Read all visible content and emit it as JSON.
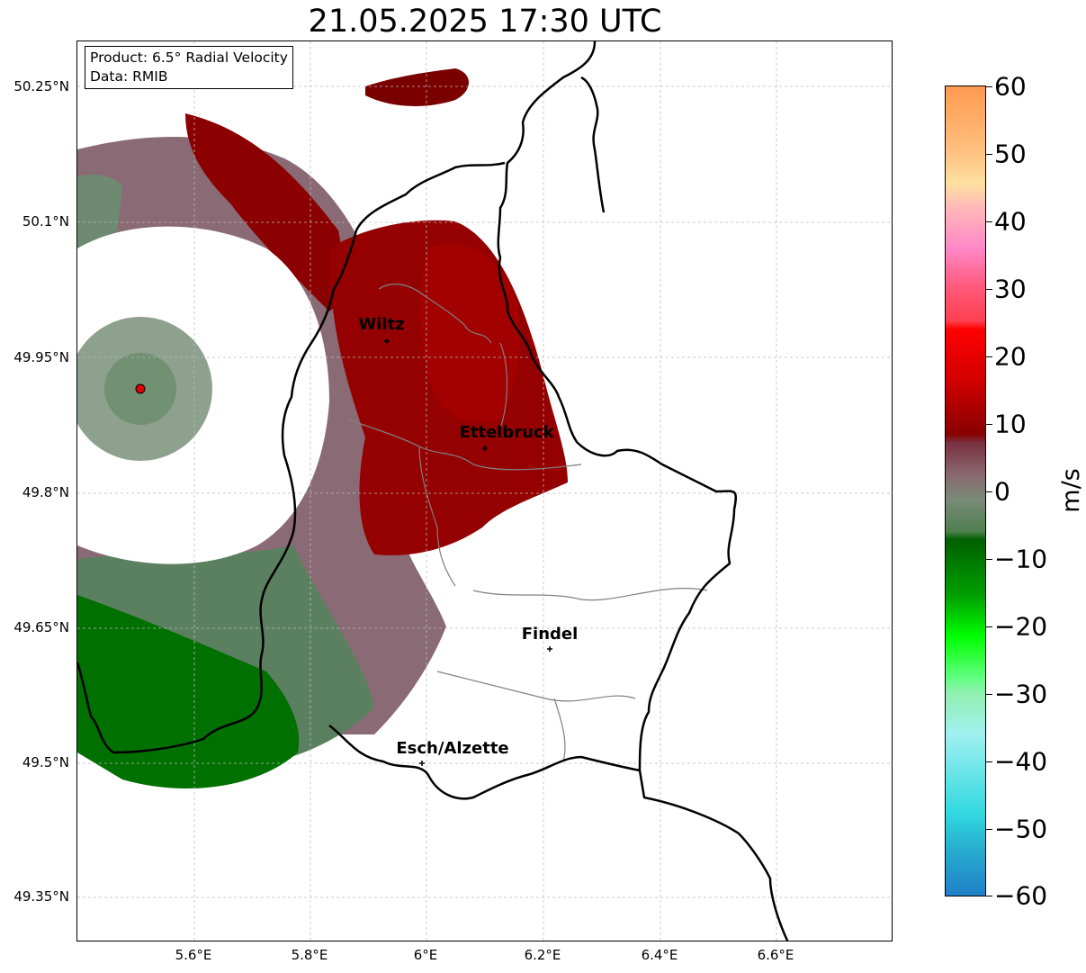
{
  "title": "21.05.2025 17:30 UTC",
  "info": {
    "product": "Product: 6.5° Radial Velocity",
    "source": "Data: RMIB"
  },
  "axes": {
    "lat_labels": [
      "50.25°N",
      "50.1°N",
      "49.95°N",
      "49.8°N",
      "49.65°N",
      "49.5°N",
      "49.35°N"
    ],
    "lon_labels": [
      "5.6°E",
      "5.8°E",
      "6°E",
      "6.2°E",
      "6.4°E",
      "6.6°E"
    ]
  },
  "cities": [
    {
      "name": "Wiltz",
      "lat": 49.966,
      "lon": 5.932
    },
    {
      "name": "Ettelbruck",
      "lat": 49.848,
      "lon": 6.098
    },
    {
      "name": "Findel",
      "lat": 49.627,
      "lon": 6.211
    },
    {
      "name": "Esch/Alzette",
      "lat": 49.496,
      "lon": 5.985
    }
  ],
  "colorbar": {
    "label": "m/s",
    "ticks": [
      "60",
      "50",
      "40",
      "30",
      "20",
      "10",
      "0",
      "−10",
      "−20",
      "−30",
      "−40",
      "−50",
      "−60"
    ],
    "min": -60,
    "max": 60
  },
  "colors": {
    "red_dark": "#7a0000",
    "red": "#a80000",
    "mauve": "#8a6470",
    "gray_green": "#6f8a70",
    "green": "#4f7f4f",
    "green_dark": "#007000",
    "radar_marker": "#e00000"
  }
}
